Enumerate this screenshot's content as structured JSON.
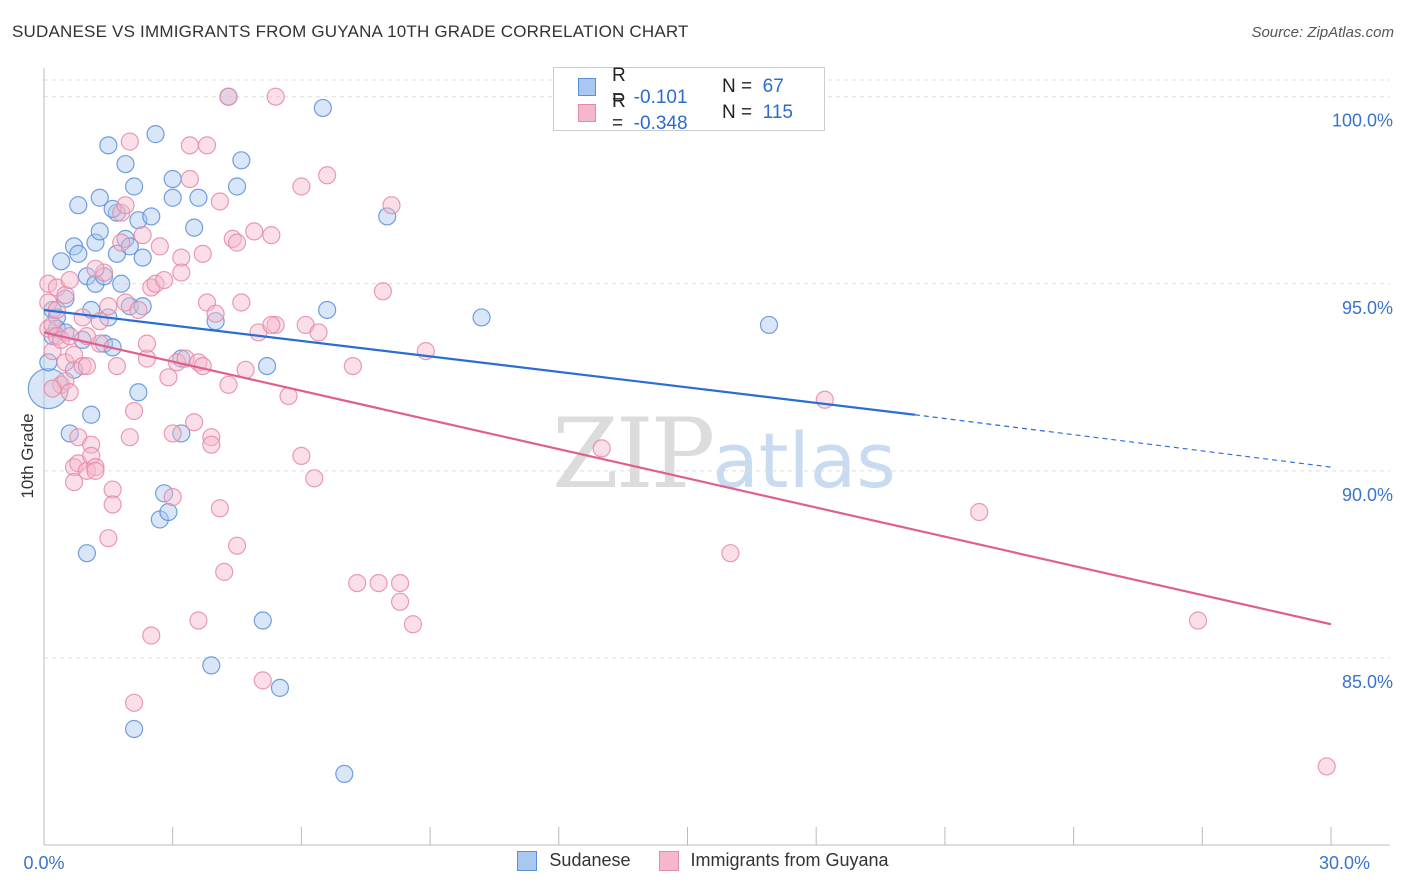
{
  "title": "SUDANESE VS IMMIGRANTS FROM GUYANA 10TH GRADE CORRELATION CHART",
  "source": "Source: ZipAtlas.com",
  "watermark": {
    "zip": "ZIP",
    "atlas": "atlas"
  },
  "legend_top": {
    "rows": [
      {
        "r_label": "R =",
        "r_value": "-0.101",
        "n_label": "N =",
        "n_value": "67"
      },
      {
        "r_label": "R =",
        "r_value": "-0.348",
        "n_label": "N =",
        "n_value": "115"
      }
    ]
  },
  "legend_bottom": {
    "sudanese": "Sudanese",
    "guyana": "Immigrants from Guyana"
  },
  "colors": {
    "blue_fill": "#a9c8f0",
    "blue_stroke": "#5b8fd6",
    "blue_line": "#2a6dd4",
    "pink_fill": "#f5b8cb",
    "pink_stroke": "#e58aa7",
    "pink_line": "#e0608c",
    "tick_label": "#3a74c8",
    "grid": "#dddddd"
  },
  "chart_data": {
    "type": "scatter",
    "title": "SUDANESE VS IMMIGRANTS FROM GUYANA 10TH GRADE CORRELATION CHART",
    "xlabel": "",
    "ylabel": "10th Grade",
    "xlim": [
      0,
      30
    ],
    "ylim": [
      80,
      100.5
    ],
    "x_tick_labels": [
      "0.0%",
      "30.0%"
    ],
    "y_ticks": [
      85,
      90,
      95,
      100
    ],
    "y_tick_labels": [
      "85.0%",
      "90.0%",
      "95.0%",
      "100.0%"
    ],
    "series": [
      {
        "name": "Sudanese",
        "r": -0.101,
        "n": 67,
        "trend": {
          "x0": 0,
          "y0": 94.3,
          "x1": 20.3,
          "y1": 91.5,
          "dash_to_x": 30,
          "dash_to_y": 90.1
        },
        "points": [
          [
            0.1,
            92.2
          ],
          [
            0.1,
            92.9
          ],
          [
            0.2,
            93.6
          ],
          [
            0.2,
            94.3
          ],
          [
            0.3,
            94.1
          ],
          [
            0.3,
            93.8
          ],
          [
            0.4,
            95.6
          ],
          [
            0.5,
            94.6
          ],
          [
            0.5,
            93.7
          ],
          [
            0.6,
            91.0
          ],
          [
            0.7,
            92.7
          ],
          [
            0.7,
            96.0
          ],
          [
            0.8,
            95.8
          ],
          [
            0.8,
            97.1
          ],
          [
            0.9,
            93.5
          ],
          [
            1.0,
            87.8
          ],
          [
            1.0,
            95.2
          ],
          [
            1.1,
            91.5
          ],
          [
            1.1,
            94.3
          ],
          [
            1.2,
            95.0
          ],
          [
            1.2,
            96.1
          ],
          [
            1.3,
            96.4
          ],
          [
            1.3,
            97.3
          ],
          [
            1.4,
            93.4
          ],
          [
            1.4,
            95.2
          ],
          [
            1.5,
            98.7
          ],
          [
            1.5,
            94.1
          ],
          [
            1.6,
            93.3
          ],
          [
            1.7,
            95.8
          ],
          [
            1.7,
            96.9
          ],
          [
            1.8,
            95.0
          ],
          [
            1.9,
            98.2
          ],
          [
            1.9,
            96.2
          ],
          [
            2.0,
            96.0
          ],
          [
            2.0,
            94.4
          ],
          [
            2.1,
            97.6
          ],
          [
            2.1,
            83.1
          ],
          [
            2.2,
            92.1
          ],
          [
            2.2,
            96.7
          ],
          [
            2.3,
            94.4
          ],
          [
            2.3,
            95.7
          ],
          [
            2.5,
            96.8
          ],
          [
            2.6,
            99.0
          ],
          [
            2.7,
            88.7
          ],
          [
            2.8,
            89.4
          ],
          [
            2.9,
            88.9
          ],
          [
            3.0,
            97.8
          ],
          [
            3.0,
            97.3
          ],
          [
            3.2,
            93.0
          ],
          [
            3.2,
            91.0
          ],
          [
            3.5,
            96.5
          ],
          [
            3.6,
            97.3
          ],
          [
            3.9,
            84.8
          ],
          [
            4.3,
            100.0
          ],
          [
            4.5,
            97.6
          ],
          [
            4.6,
            98.3
          ],
          [
            5.1,
            86.0
          ],
          [
            5.2,
            92.8
          ],
          [
            5.5,
            84.2
          ],
          [
            6.6,
            94.3
          ],
          [
            6.5,
            99.7
          ],
          [
            7.0,
            81.9
          ],
          [
            8.0,
            96.8
          ],
          [
            10.2,
            94.1
          ],
          [
            16.9,
            93.9
          ],
          [
            4.0,
            94.0
          ],
          [
            1.6,
            97.0
          ]
        ]
      },
      {
        "name": "Immigrants from Guyana",
        "r": -0.348,
        "n": 115,
        "trend": {
          "x0": 0,
          "y0": 93.7,
          "x1": 30,
          "y1": 85.9
        },
        "points": [
          [
            0.1,
            93.8
          ],
          [
            0.1,
            94.5
          ],
          [
            0.1,
            95.0
          ],
          [
            0.2,
            93.2
          ],
          [
            0.2,
            93.9
          ],
          [
            0.3,
            94.3
          ],
          [
            0.3,
            94.9
          ],
          [
            0.3,
            93.6
          ],
          [
            0.4,
            92.3
          ],
          [
            0.4,
            93.5
          ],
          [
            0.5,
            92.9
          ],
          [
            0.5,
            92.4
          ],
          [
            0.5,
            94.7
          ],
          [
            0.6,
            95.1
          ],
          [
            0.6,
            93.6
          ],
          [
            0.7,
            93.1
          ],
          [
            0.7,
            90.1
          ],
          [
            0.7,
            89.7
          ],
          [
            0.8,
            90.9
          ],
          [
            0.8,
            90.2
          ],
          [
            0.9,
            92.8
          ],
          [
            0.9,
            94.1
          ],
          [
            1.0,
            92.8
          ],
          [
            1.0,
            90.0
          ],
          [
            1.1,
            90.7
          ],
          [
            1.1,
            90.4
          ],
          [
            1.2,
            90.1
          ],
          [
            1.2,
            90.0
          ],
          [
            1.3,
            93.4
          ],
          [
            1.3,
            94.0
          ],
          [
            1.4,
            95.3
          ],
          [
            1.5,
            94.4
          ],
          [
            1.5,
            88.2
          ],
          [
            1.6,
            89.5
          ],
          [
            1.6,
            89.1
          ],
          [
            1.7,
            92.8
          ],
          [
            1.8,
            96.9
          ],
          [
            1.8,
            96.1
          ],
          [
            1.9,
            94.5
          ],
          [
            1.9,
            97.1
          ],
          [
            2.0,
            90.9
          ],
          [
            2.0,
            98.8
          ],
          [
            2.1,
            91.6
          ],
          [
            2.1,
            83.8
          ],
          [
            2.2,
            94.3
          ],
          [
            2.3,
            96.3
          ],
          [
            2.4,
            93.0
          ],
          [
            2.4,
            93.4
          ],
          [
            2.5,
            94.9
          ],
          [
            2.5,
            85.6
          ],
          [
            2.6,
            95.0
          ],
          [
            2.8,
            95.1
          ],
          [
            2.9,
            92.5
          ],
          [
            3.0,
            91.0
          ],
          [
            3.0,
            89.3
          ],
          [
            3.1,
            92.9
          ],
          [
            3.2,
            95.7
          ],
          [
            3.2,
            95.3
          ],
          [
            3.3,
            93.0
          ],
          [
            3.4,
            98.7
          ],
          [
            3.4,
            97.8
          ],
          [
            3.5,
            91.3
          ],
          [
            3.6,
            86.0
          ],
          [
            3.6,
            92.9
          ],
          [
            3.7,
            95.8
          ],
          [
            3.8,
            98.7
          ],
          [
            3.8,
            94.5
          ],
          [
            3.9,
            90.9
          ],
          [
            3.9,
            90.7
          ],
          [
            4.0,
            94.2
          ],
          [
            4.1,
            89.0
          ],
          [
            4.1,
            97.2
          ],
          [
            4.2,
            87.3
          ],
          [
            4.3,
            92.3
          ],
          [
            4.3,
            100.0
          ],
          [
            4.4,
            96.2
          ],
          [
            4.5,
            88.0
          ],
          [
            4.5,
            96.1
          ],
          [
            4.6,
            94.5
          ],
          [
            4.7,
            92.7
          ],
          [
            4.9,
            96.4
          ],
          [
            5.0,
            93.7
          ],
          [
            5.1,
            84.4
          ],
          [
            5.3,
            96.3
          ],
          [
            5.4,
            93.9
          ],
          [
            5.4,
            100.0
          ],
          [
            5.7,
            92.0
          ],
          [
            6.0,
            90.4
          ],
          [
            6.0,
            97.6
          ],
          [
            6.1,
            93.9
          ],
          [
            6.3,
            89.8
          ],
          [
            6.4,
            93.7
          ],
          [
            6.6,
            97.9
          ],
          [
            7.2,
            92.8
          ],
          [
            7.3,
            87.0
          ],
          [
            7.8,
            87.0
          ],
          [
            7.9,
            94.8
          ],
          [
            8.1,
            97.1
          ],
          [
            8.3,
            87.0
          ],
          [
            8.3,
            86.5
          ],
          [
            8.6,
            85.9
          ],
          [
            8.9,
            93.2
          ],
          [
            13.0,
            90.6
          ],
          [
            16.0,
            87.8
          ],
          [
            18.2,
            91.9
          ],
          [
            21.8,
            88.9
          ],
          [
            26.9,
            86.0
          ],
          [
            29.9,
            82.1
          ],
          [
            0.2,
            92.2
          ],
          [
            0.6,
            92.1
          ],
          [
            1.0,
            93.6
          ],
          [
            1.2,
            95.4
          ],
          [
            2.7,
            96.0
          ],
          [
            3.7,
            92.8
          ],
          [
            5.3,
            93.9
          ]
        ]
      }
    ]
  }
}
